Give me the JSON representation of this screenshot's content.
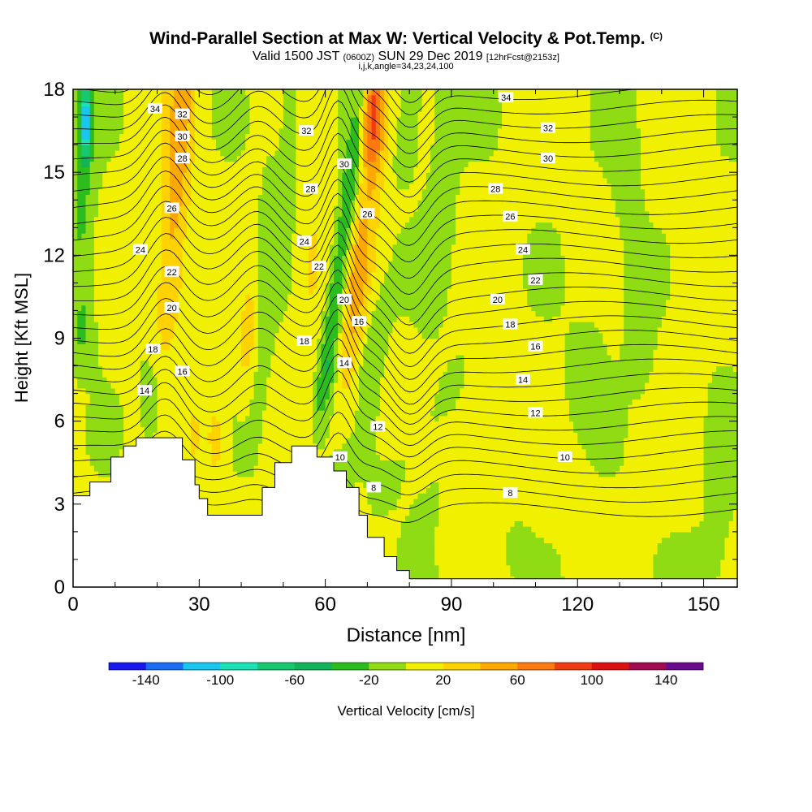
{
  "header": {
    "title": "Wind-Parallel Section at Max W: Vertical Velocity & Pot.Temp.",
    "copyright": "(C)",
    "valid_main": "Valid 1500 JST",
    "valid_utc": "(0600Z)",
    "valid_date": "SUN 29 Dec 2019",
    "forecast": "[12hrFcst@2153z]",
    "indices": "i,j,k,angle=34,23,24,100"
  },
  "chart_data": {
    "type": "contour",
    "xlabel": "Distance [nm]",
    "ylabel": "Height [Kft MSL]",
    "xlim": [
      0,
      158
    ],
    "ylim": [
      0,
      18
    ],
    "x_ticks": [
      0,
      30,
      60,
      90,
      120,
      150
    ],
    "y_ticks": [
      0,
      3,
      6,
      9,
      12,
      15,
      18
    ],
    "colorbar": {
      "label": "Vertical Velocity [cm/s]",
      "tick_labels": [
        -140,
        -100,
        -60,
        -20,
        20,
        60,
        100,
        140
      ],
      "boundaries": [
        -160,
        -140,
        -120,
        -100,
        -80,
        -60,
        -40,
        -20,
        0,
        20,
        40,
        60,
        80,
        100,
        120,
        140,
        160
      ],
      "colors": [
        "#1818f0",
        "#1a6cf5",
        "#18c6f0",
        "#1ae2b4",
        "#18c86e",
        "#12b45a",
        "#2cbc1e",
        "#90dc14",
        "#f0f000",
        "#ffd200",
        "#ffa800",
        "#ff7810",
        "#f03c10",
        "#dc1010",
        "#a00a50",
        "#6a0a8c"
      ]
    },
    "terrain_profile_kft": [
      [
        0,
        3.3
      ],
      [
        4,
        3.3
      ],
      [
        4,
        3.8
      ],
      [
        9,
        3.8
      ],
      [
        9,
        4.7
      ],
      [
        12,
        4.7
      ],
      [
        12,
        5.1
      ],
      [
        15,
        5.1
      ],
      [
        15,
        5.4
      ],
      [
        26,
        5.4
      ],
      [
        26,
        4.6
      ],
      [
        29,
        4.6
      ],
      [
        29,
        3.7
      ],
      [
        30,
        3.7
      ],
      [
        30,
        3.2
      ],
      [
        32,
        3.2
      ],
      [
        32,
        2.6
      ],
      [
        45,
        2.6
      ],
      [
        45,
        3.6
      ],
      [
        48,
        3.6
      ],
      [
        48,
        4.5
      ],
      [
        52,
        4.5
      ],
      [
        52,
        5.1
      ],
      [
        58,
        5.1
      ],
      [
        58,
        4.7
      ],
      [
        62,
        4.7
      ],
      [
        62,
        4.2
      ],
      [
        65,
        4.2
      ],
      [
        65,
        3.6
      ],
      [
        68,
        3.6
      ],
      [
        68,
        2.6
      ],
      [
        70,
        2.6
      ],
      [
        70,
        1.8
      ],
      [
        74,
        1.8
      ],
      [
        74,
        1.1
      ],
      [
        77,
        1.1
      ],
      [
        77,
        0.6
      ],
      [
        80,
        0.6
      ],
      [
        80,
        0.3
      ],
      [
        90,
        0.3
      ],
      [
        90,
        0.3
      ],
      [
        158,
        0.3
      ]
    ],
    "theta_contour_labels": [
      {
        "text": "34",
        "x": 19.5,
        "y": 17.3
      },
      {
        "text": "32",
        "x": 26,
        "y": 17.1
      },
      {
        "text": "30",
        "x": 26,
        "y": 16.3
      },
      {
        "text": "28",
        "x": 26,
        "y": 15.5
      },
      {
        "text": "26",
        "x": 23.5,
        "y": 13.7
      },
      {
        "text": "24",
        "x": 16,
        "y": 12.2
      },
      {
        "text": "22",
        "x": 23.5,
        "y": 11.4
      },
      {
        "text": "20",
        "x": 23.5,
        "y": 10.1
      },
      {
        "text": "18",
        "x": 19,
        "y": 8.6
      },
      {
        "text": "16",
        "x": 26,
        "y": 7.8
      },
      {
        "text": "14",
        "x": 17,
        "y": 7.1
      },
      {
        "text": "32",
        "x": 55.5,
        "y": 16.5
      },
      {
        "text": "28",
        "x": 56.5,
        "y": 14.4
      },
      {
        "text": "30",
        "x": 64.5,
        "y": 15.3
      },
      {
        "text": "24",
        "x": 55,
        "y": 12.5
      },
      {
        "text": "22",
        "x": 58.5,
        "y": 11.6
      },
      {
        "text": "20",
        "x": 64.5,
        "y": 10.4
      },
      {
        "text": "18",
        "x": 55,
        "y": 8.9
      },
      {
        "text": "16",
        "x": 68,
        "y": 9.6
      },
      {
        "text": "14",
        "x": 64.5,
        "y": 8.1
      },
      {
        "text": "26",
        "x": 70,
        "y": 13.5
      },
      {
        "text": "12",
        "x": 72.5,
        "y": 5.8
      },
      {
        "text": "10",
        "x": 63.5,
        "y": 4.7
      },
      {
        "text": "8",
        "x": 71.5,
        "y": 3.6
      },
      {
        "text": "34",
        "x": 103,
        "y": 17.7
      },
      {
        "text": "32",
        "x": 113,
        "y": 16.6
      },
      {
        "text": "30",
        "x": 113,
        "y": 15.5
      },
      {
        "text": "28",
        "x": 100.5,
        "y": 14.4
      },
      {
        "text": "26",
        "x": 104,
        "y": 13.4
      },
      {
        "text": "24",
        "x": 107,
        "y": 12.2
      },
      {
        "text": "22",
        "x": 110,
        "y": 11.1
      },
      {
        "text": "20",
        "x": 101,
        "y": 10.4
      },
      {
        "text": "18",
        "x": 104,
        "y": 9.5
      },
      {
        "text": "16",
        "x": 110,
        "y": 8.7
      },
      {
        "text": "14",
        "x": 107,
        "y": 7.5
      },
      {
        "text": "12",
        "x": 110,
        "y": 6.3
      },
      {
        "text": "10",
        "x": 117,
        "y": 4.7
      },
      {
        "text": "8",
        "x": 104,
        "y": 3.4
      }
    ]
  }
}
